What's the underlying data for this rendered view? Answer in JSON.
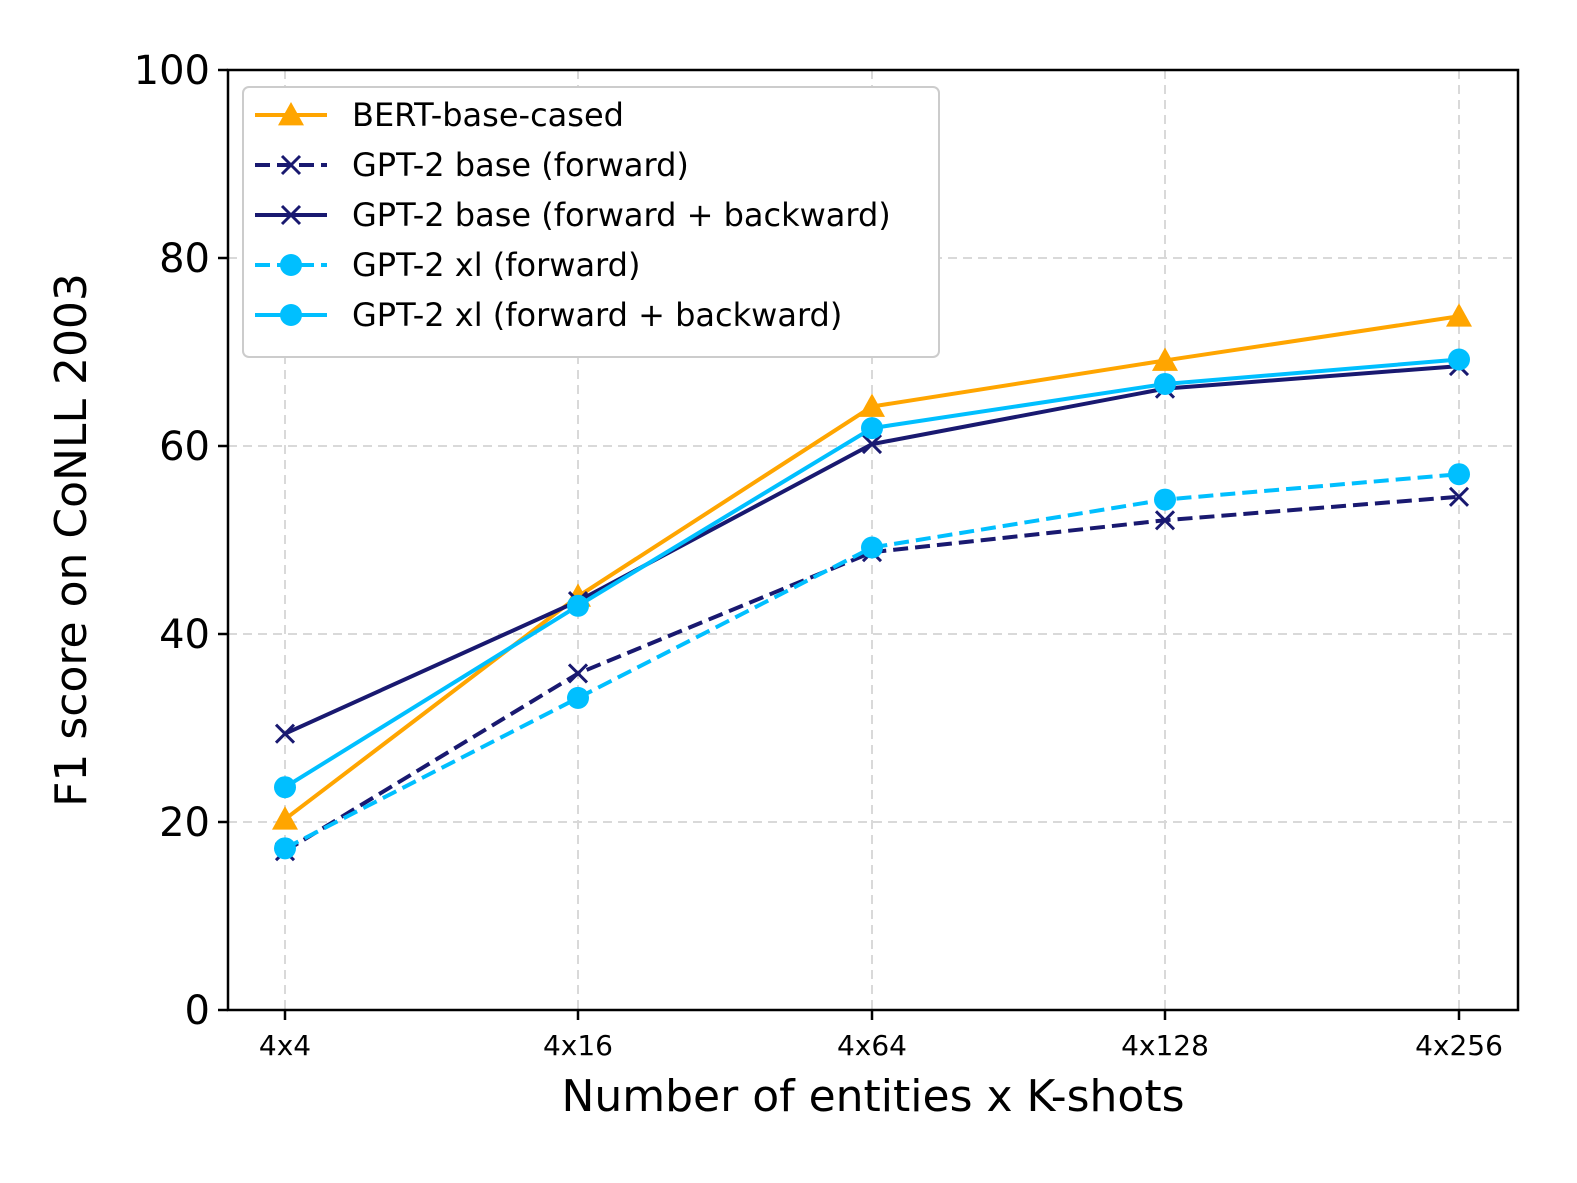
{
  "chart_data": {
    "type": "line",
    "title": "",
    "xlabel": "Number of entities x K-shots",
    "ylabel": "F1 score on CoNLL 2003",
    "categories": [
      "4x4",
      "4x16",
      "4x64",
      "4x128",
      "4x256"
    ],
    "ylim": [
      0,
      100
    ],
    "yticks": [
      "0",
      "20",
      "40",
      "60",
      "80",
      "100"
    ],
    "grid": true,
    "legend_position": "upper-left",
    "series": [
      {
        "name": "BERT-base-cased",
        "values": [
          20.3,
          44.0,
          64.2,
          69.1,
          73.8
        ],
        "color": "#FFA500",
        "dash": "solid",
        "marker": "triangle"
      },
      {
        "name": "GPT-2 base (forward)",
        "values": [
          16.9,
          35.8,
          48.7,
          52.1,
          54.6
        ],
        "color": "#191970",
        "dash": "dashed",
        "marker": "x"
      },
      {
        "name": "GPT-2 base (forward + backward)",
        "values": [
          29.4,
          43.5,
          60.2,
          66.1,
          68.5
        ],
        "color": "#191970",
        "dash": "solid",
        "marker": "x"
      },
      {
        "name": "GPT-2 xl (forward)",
        "values": [
          17.2,
          33.2,
          49.2,
          54.3,
          57.0
        ],
        "color": "#00BFFF",
        "dash": "dashed",
        "marker": "circle"
      },
      {
        "name": "GPT-2 xl (forward + backward)",
        "values": [
          23.7,
          43.0,
          61.9,
          66.6,
          69.2
        ],
        "color": "#00BFFF",
        "dash": "solid",
        "marker": "circle"
      }
    ]
  }
}
